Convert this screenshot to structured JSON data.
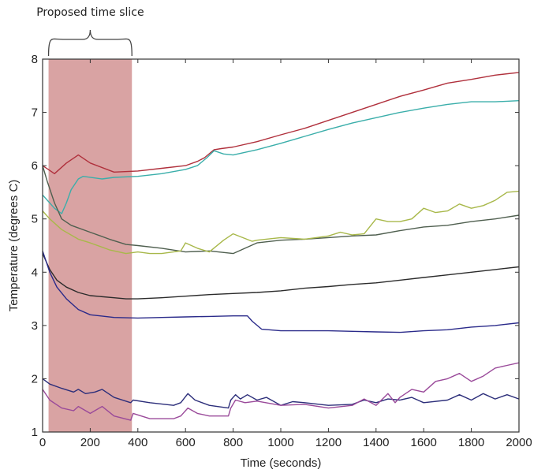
{
  "chart_data": {
    "type": "line",
    "title": "",
    "xlabel": "Time (seconds)",
    "ylabel": "Temperature (degrees C)",
    "xlim": [
      0,
      2000
    ],
    "ylim": [
      1,
      8
    ],
    "xticks": [
      0,
      200,
      400,
      600,
      800,
      1000,
      1200,
      1400,
      1600,
      1800,
      2000
    ],
    "yticks": [
      1,
      2,
      3,
      4,
      5,
      6,
      7,
      8
    ],
    "grid": false,
    "legend": "none",
    "annotation": {
      "text": "Proposed time slice",
      "span": [
        25,
        375
      ],
      "shade_color": "#d9a3a3"
    },
    "series": [
      {
        "name": "red",
        "color": "#b0303c",
        "x": [
          0,
          50,
          100,
          150,
          200,
          300,
          400,
          500,
          600,
          650,
          680,
          720,
          750,
          800,
          900,
          1000,
          1100,
          1200,
          1300,
          1400,
          1500,
          1600,
          1700,
          1800,
          1900,
          2000
        ],
        "y": [
          6.0,
          5.85,
          6.05,
          6.2,
          6.05,
          5.88,
          5.9,
          5.95,
          6.0,
          6.08,
          6.15,
          6.3,
          6.32,
          6.35,
          6.45,
          6.58,
          6.7,
          6.85,
          7.0,
          7.15,
          7.3,
          7.42,
          7.55,
          7.62,
          7.7,
          7.75
        ]
      },
      {
        "name": "cyan",
        "color": "#3aaeaa",
        "x": [
          0,
          50,
          80,
          100,
          120,
          150,
          170,
          250,
          300,
          400,
          500,
          600,
          650,
          690,
          720,
          760,
          800,
          900,
          1000,
          1100,
          1200,
          1300,
          1400,
          1500,
          1600,
          1700,
          1800,
          1900,
          2000
        ],
        "y": [
          5.45,
          5.2,
          5.1,
          5.3,
          5.55,
          5.75,
          5.8,
          5.75,
          5.78,
          5.8,
          5.85,
          5.93,
          6.0,
          6.15,
          6.28,
          6.22,
          6.2,
          6.3,
          6.42,
          6.55,
          6.68,
          6.8,
          6.9,
          7.0,
          7.08,
          7.15,
          7.2,
          7.2,
          7.22
        ]
      },
      {
        "name": "dark-green",
        "color": "#4f5f4f",
        "x": [
          0,
          20,
          50,
          80,
          120,
          200,
          280,
          350,
          400,
          500,
          600,
          700,
          800,
          850,
          900,
          1000,
          1100,
          1200,
          1300,
          1400,
          1500,
          1600,
          1700,
          1800,
          1900,
          2000
        ],
        "y": [
          6.0,
          5.7,
          5.3,
          5.0,
          4.88,
          4.75,
          4.62,
          4.52,
          4.5,
          4.45,
          4.38,
          4.4,
          4.35,
          4.45,
          4.55,
          4.6,
          4.62,
          4.65,
          4.68,
          4.7,
          4.78,
          4.85,
          4.88,
          4.95,
          5.0,
          5.07
        ]
      },
      {
        "name": "yellow-green",
        "color": "#a8b84a",
        "x": [
          0,
          30,
          80,
          150,
          200,
          280,
          350,
          400,
          450,
          500,
          580,
          600,
          650,
          700,
          760,
          800,
          880,
          900,
          1000,
          1100,
          1200,
          1250,
          1300,
          1350,
          1400,
          1450,
          1500,
          1550,
          1600,
          1650,
          1700,
          1750,
          1800,
          1850,
          1900,
          1950,
          2000
        ],
        "y": [
          5.15,
          5.0,
          4.8,
          4.62,
          4.55,
          4.42,
          4.35,
          4.38,
          4.35,
          4.35,
          4.4,
          4.55,
          4.45,
          4.38,
          4.6,
          4.72,
          4.58,
          4.6,
          4.65,
          4.62,
          4.68,
          4.75,
          4.7,
          4.72,
          5.0,
          4.95,
          4.95,
          5.0,
          5.2,
          5.12,
          5.15,
          5.28,
          5.2,
          5.25,
          5.35,
          5.5,
          5.52
        ]
      },
      {
        "name": "black",
        "color": "#2b2b2b",
        "x": [
          0,
          30,
          60,
          100,
          150,
          200,
          300,
          350,
          400,
          500,
          600,
          700,
          800,
          900,
          1000,
          1100,
          1200,
          1300,
          1400,
          1500,
          1600,
          1700,
          1800,
          1900,
          2000
        ],
        "y": [
          4.35,
          4.05,
          3.85,
          3.72,
          3.62,
          3.56,
          3.52,
          3.5,
          3.5,
          3.52,
          3.55,
          3.58,
          3.6,
          3.62,
          3.65,
          3.7,
          3.73,
          3.77,
          3.8,
          3.85,
          3.9,
          3.95,
          4.0,
          4.05,
          4.1
        ]
      },
      {
        "name": "navy",
        "color": "#2a2a8a",
        "x": [
          0,
          30,
          60,
          100,
          150,
          200,
          300,
          400,
          500,
          600,
          700,
          800,
          860,
          880,
          920,
          1000,
          1100,
          1200,
          1300,
          1400,
          1500,
          1600,
          1700,
          1800,
          1900,
          2000
        ],
        "y": [
          4.4,
          4.0,
          3.72,
          3.5,
          3.3,
          3.2,
          3.15,
          3.14,
          3.15,
          3.16,
          3.17,
          3.18,
          3.18,
          3.08,
          2.93,
          2.9,
          2.9,
          2.9,
          2.89,
          2.88,
          2.87,
          2.9,
          2.92,
          2.97,
          3.0,
          3.05
        ]
      },
      {
        "name": "navy-low",
        "color": "#2c2e7a",
        "x": [
          0,
          30,
          80,
          130,
          150,
          180,
          220,
          250,
          300,
          370,
          380,
          450,
          550,
          580,
          610,
          640,
          700,
          780,
          790,
          810,
          830,
          860,
          900,
          940,
          1000,
          1050,
          1100,
          1200,
          1300,
          1350,
          1400,
          1450,
          1500,
          1550,
          1600,
          1700,
          1750,
          1800,
          1850,
          1900,
          1950,
          2000
        ],
        "y": [
          2.0,
          1.9,
          1.82,
          1.75,
          1.8,
          1.72,
          1.75,
          1.8,
          1.65,
          1.55,
          1.6,
          1.55,
          1.5,
          1.55,
          1.72,
          1.6,
          1.5,
          1.45,
          1.6,
          1.7,
          1.62,
          1.7,
          1.6,
          1.65,
          1.5,
          1.57,
          1.55,
          1.5,
          1.52,
          1.6,
          1.55,
          1.62,
          1.6,
          1.65,
          1.55,
          1.6,
          1.7,
          1.6,
          1.72,
          1.62,
          1.7,
          1.62
        ]
      },
      {
        "name": "purple",
        "color": "#9a4a9a",
        "x": [
          0,
          30,
          80,
          130,
          150,
          200,
          250,
          300,
          370,
          380,
          450,
          550,
          580,
          610,
          650,
          700,
          780,
          790,
          810,
          850,
          900,
          1000,
          1100,
          1200,
          1300,
          1350,
          1400,
          1450,
          1480,
          1500,
          1550,
          1600,
          1650,
          1700,
          1750,
          1800,
          1850,
          1900,
          1950,
          2000
        ],
        "y": [
          1.8,
          1.6,
          1.45,
          1.4,
          1.48,
          1.35,
          1.48,
          1.3,
          1.22,
          1.35,
          1.25,
          1.25,
          1.3,
          1.45,
          1.35,
          1.3,
          1.3,
          1.45,
          1.6,
          1.55,
          1.58,
          1.5,
          1.52,
          1.45,
          1.5,
          1.62,
          1.5,
          1.72,
          1.55,
          1.65,
          1.8,
          1.75,
          1.95,
          2.0,
          2.1,
          1.95,
          2.05,
          2.2,
          2.25,
          2.3
        ]
      }
    ]
  }
}
